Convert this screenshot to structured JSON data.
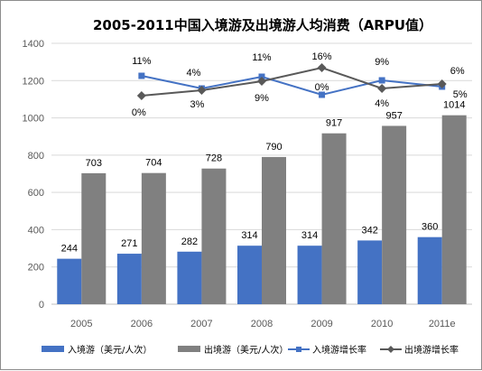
{
  "colors": {
    "inbound": "#4472C4",
    "outbound": "#808080",
    "inbound_line": "#4472C4",
    "outbound_line": "#595959",
    "grid": "#d9d9d9"
  },
  "chart_data": {
    "type": "bar",
    "title": "2005-2011中国入境游及出境游人均消费（ARPU值）",
    "categories": [
      "2005",
      "2006",
      "2007",
      "2008",
      "2009",
      "2010",
      "2011e"
    ],
    "ylim": [
      0,
      1400
    ],
    "yticks": [
      0,
      200,
      400,
      600,
      800,
      1000,
      1200,
      1400
    ],
    "grid": true,
    "legend_position": "bottom",
    "series": [
      {
        "name": "入境游（美元/人次）",
        "kind": "bar",
        "values": [
          244,
          271,
          282,
          314,
          314,
          342,
          360
        ]
      },
      {
        "name": "出境游（美元/人次）",
        "kind": "bar",
        "values": [
          703,
          704,
          728,
          790,
          917,
          957,
          1014
        ]
      },
      {
        "name": "入境游增长率",
        "kind": "line",
        "categories": [
          "2006",
          "2007",
          "2008",
          "2009",
          "2010",
          "2011e"
        ],
        "labels": [
          "11%",
          "4%",
          "11%",
          "0%",
          "9%",
          "5%"
        ]
      },
      {
        "name": "出境游增长率",
        "kind": "line",
        "categories": [
          "2006",
          "2007",
          "2008",
          "2009",
          "2010",
          "2011e"
        ],
        "labels": [
          "0%",
          "3%",
          "9%",
          "16%",
          "4%",
          "6%"
        ]
      }
    ]
  }
}
